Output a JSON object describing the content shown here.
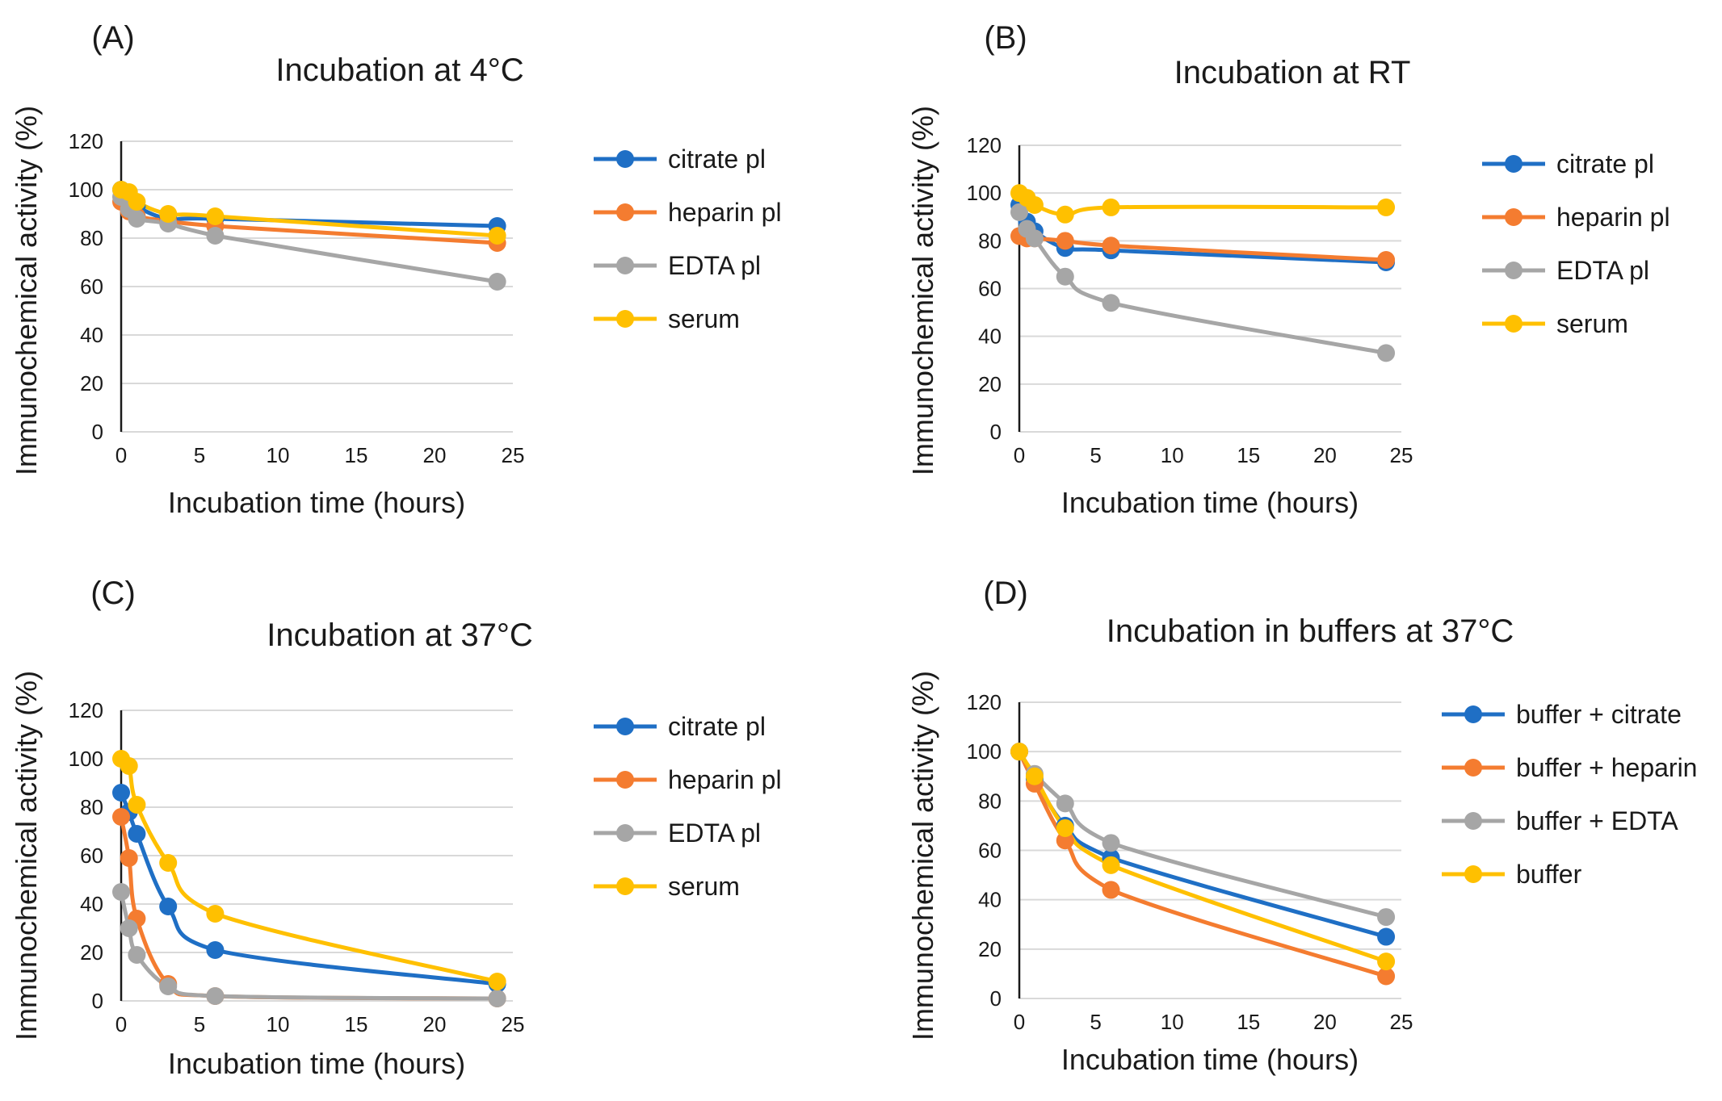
{
  "chart_data": [
    {
      "panel": "(A)",
      "type": "line",
      "title": "Incubation at 4°C",
      "xlabel": "Incubation time (hours)",
      "ylabel": "Immunochemical activity (%)",
      "xlim": [
        0,
        25
      ],
      "ylim": [
        0,
        120
      ],
      "xticks": [
        0,
        5,
        10,
        15,
        20,
        25
      ],
      "yticks": [
        0,
        20,
        40,
        60,
        80,
        100,
        120
      ],
      "grid": true,
      "legend": "right",
      "x": [
        0,
        0.5,
        1,
        3,
        6,
        24
      ],
      "series": [
        {
          "name": "citrate pl",
          "color": "#1f6fc5",
          "values": [
            100,
            96,
            93,
            88,
            88,
            85
          ]
        },
        {
          "name": "heparin pl",
          "color": "#f47c30",
          "values": [
            95,
            91,
            89,
            87,
            85,
            78
          ]
        },
        {
          "name": "EDTA pl",
          "color": "#a6a6a6",
          "values": [
            97,
            92,
            88,
            86,
            81,
            62
          ]
        },
        {
          "name": "serum",
          "color": "#ffc000",
          "values": [
            100,
            99,
            95,
            90,
            89,
            81
          ]
        }
      ]
    },
    {
      "panel": "(B)",
      "type": "line",
      "title": "Incubation at RT",
      "xlabel": "Incubation time (hours)",
      "ylabel": "Immunochemical activity (%)",
      "xlim": [
        0,
        25
      ],
      "ylim": [
        0,
        120
      ],
      "xticks": [
        0,
        5,
        10,
        15,
        20,
        25
      ],
      "yticks": [
        0,
        20,
        40,
        60,
        80,
        100,
        120
      ],
      "grid": true,
      "legend": "right",
      "x": [
        0,
        0.5,
        1,
        3,
        6,
        24
      ],
      "series": [
        {
          "name": "citrate pl",
          "color": "#1f6fc5",
          "values": [
            95,
            88,
            84,
            77,
            76,
            71
          ]
        },
        {
          "name": "heparin pl",
          "color": "#f47c30",
          "values": [
            82,
            81,
            81,
            80,
            78,
            72
          ]
        },
        {
          "name": "EDTA pl",
          "color": "#a6a6a6",
          "values": [
            92,
            85,
            81,
            65,
            54,
            33
          ]
        },
        {
          "name": "serum",
          "color": "#ffc000",
          "values": [
            100,
            98,
            95,
            91,
            94,
            94
          ]
        }
      ]
    },
    {
      "panel": "(C)",
      "type": "line",
      "title": "Incubation at 37°C",
      "xlabel": "Incubation time (hours)",
      "ylabel": "Immunochemical activity (%)",
      "xlim": [
        0,
        25
      ],
      "ylim": [
        0,
        120
      ],
      "xticks": [
        0,
        5,
        10,
        15,
        20,
        25
      ],
      "yticks": [
        0,
        20,
        40,
        60,
        80,
        100,
        120
      ],
      "grid": true,
      "legend": "right",
      "x": [
        0,
        0.5,
        1,
        3,
        6,
        24
      ],
      "series": [
        {
          "name": "citrate pl",
          "color": "#1f6fc5",
          "values": [
            86,
            78,
            69,
            39,
            21,
            7
          ]
        },
        {
          "name": "heparin pl",
          "color": "#f47c30",
          "values": [
            76,
            59,
            34,
            7,
            2,
            1
          ]
        },
        {
          "name": "EDTA pl",
          "color": "#a6a6a6",
          "values": [
            45,
            30,
            19,
            6,
            2,
            1
          ]
        },
        {
          "name": "serum",
          "color": "#ffc000",
          "values": [
            100,
            97,
            81,
            57,
            36,
            8
          ]
        }
      ]
    },
    {
      "panel": "(D)",
      "type": "line",
      "title": "Incubation in buffers at 37°C",
      "xlabel": "Incubation time (hours)",
      "ylabel": "Immunochemical activity (%)",
      "xlim": [
        0,
        25
      ],
      "ylim": [
        0,
        120
      ],
      "xticks": [
        0,
        5,
        10,
        15,
        20,
        25
      ],
      "yticks": [
        0,
        20,
        40,
        60,
        80,
        100,
        120
      ],
      "grid": true,
      "legend": "right",
      "x": [
        0,
        1,
        3,
        6,
        24
      ],
      "series": [
        {
          "name": "buffer + citrate",
          "color": "#1f6fc5",
          "values": [
            100,
            89,
            70,
            57,
            25
          ]
        },
        {
          "name": "buffer + heparin",
          "color": "#f47c30",
          "values": [
            100,
            87,
            64,
            44,
            9
          ]
        },
        {
          "name": "buffer + EDTA",
          "color": "#a6a6a6",
          "values": [
            100,
            91,
            79,
            63,
            33
          ]
        },
        {
          "name": "buffer",
          "color": "#ffc000",
          "values": [
            100,
            90,
            69,
            54,
            15
          ]
        }
      ]
    }
  ]
}
